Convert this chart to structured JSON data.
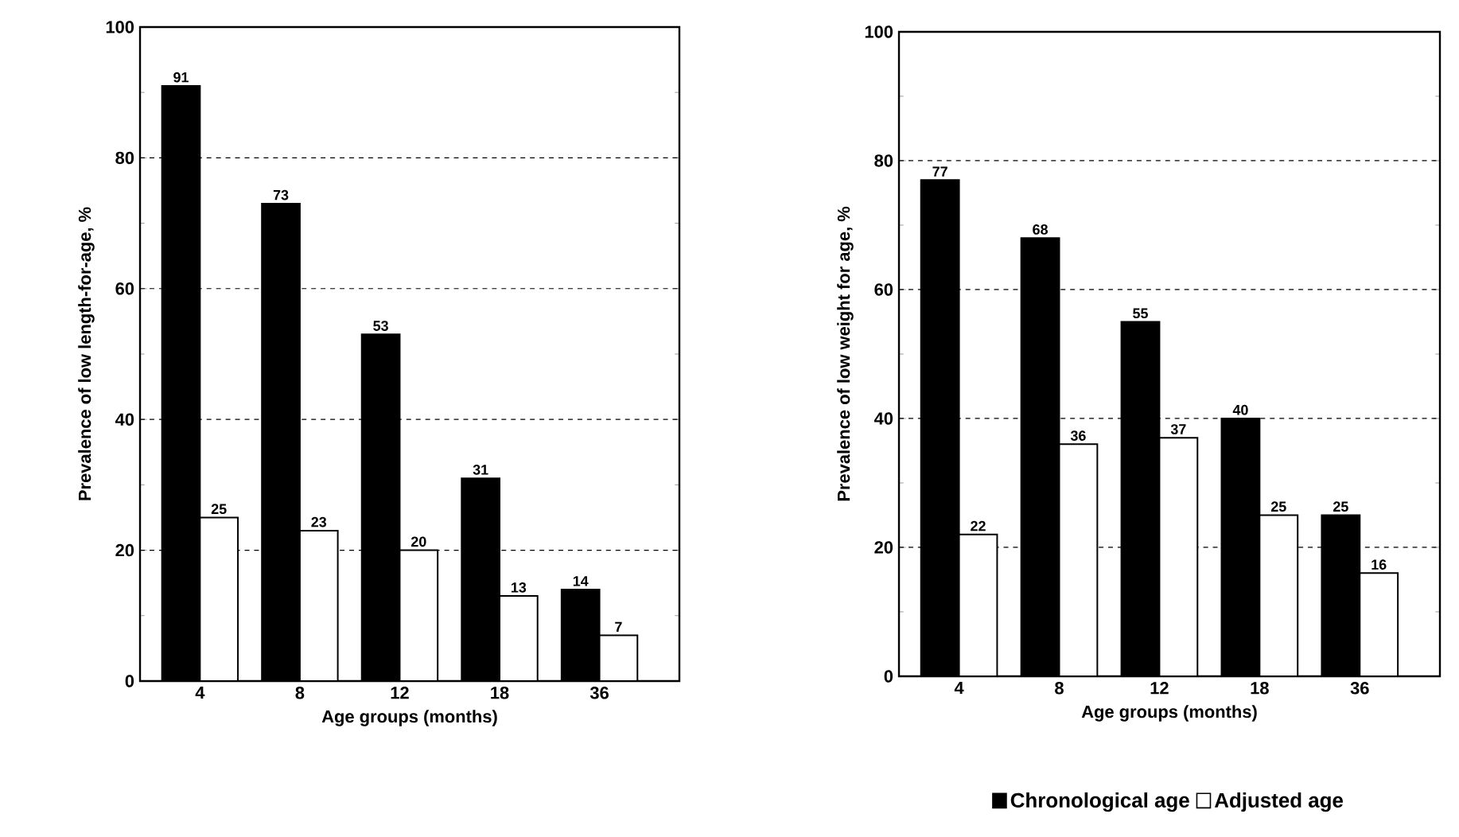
{
  "chart_data": [
    {
      "type": "bar",
      "xlabel": "Age groups (months)",
      "ylabel": "Prevalence of low length-for-age, %",
      "categories": [
        "4",
        "8",
        "12",
        "18",
        "36"
      ],
      "series": [
        {
          "color": "#000000",
          "values": [
            91,
            73,
            53,
            31,
            14
          ]
        },
        {
          "color": "#ffffff",
          "values": [
            25,
            23,
            20,
            13,
            7
          ]
        }
      ],
      "ylim": [
        0,
        100
      ],
      "yticks": [
        0,
        20,
        40,
        60,
        80,
        100
      ],
      "grid": "y",
      "data_labels": true
    },
    {
      "type": "bar",
      "xlabel": "Age groups (months)",
      "ylabel": "Prevalence of low weight for age, %",
      "categories": [
        "4",
        "8",
        "12",
        "18",
        "36"
      ],
      "series": [
        {
          "name": "Chronological age",
          "color": "#000000",
          "values": [
            77,
            68,
            55,
            40,
            25
          ]
        },
        {
          "name": "Adjusted age",
          "color": "#ffffff",
          "values": [
            22,
            36,
            37,
            25,
            16
          ]
        }
      ],
      "ylim": [
        0,
        100
      ],
      "yticks": [
        0,
        20,
        40,
        60,
        80,
        100
      ],
      "grid": "y",
      "data_labels": true,
      "legend": "bottom"
    }
  ]
}
